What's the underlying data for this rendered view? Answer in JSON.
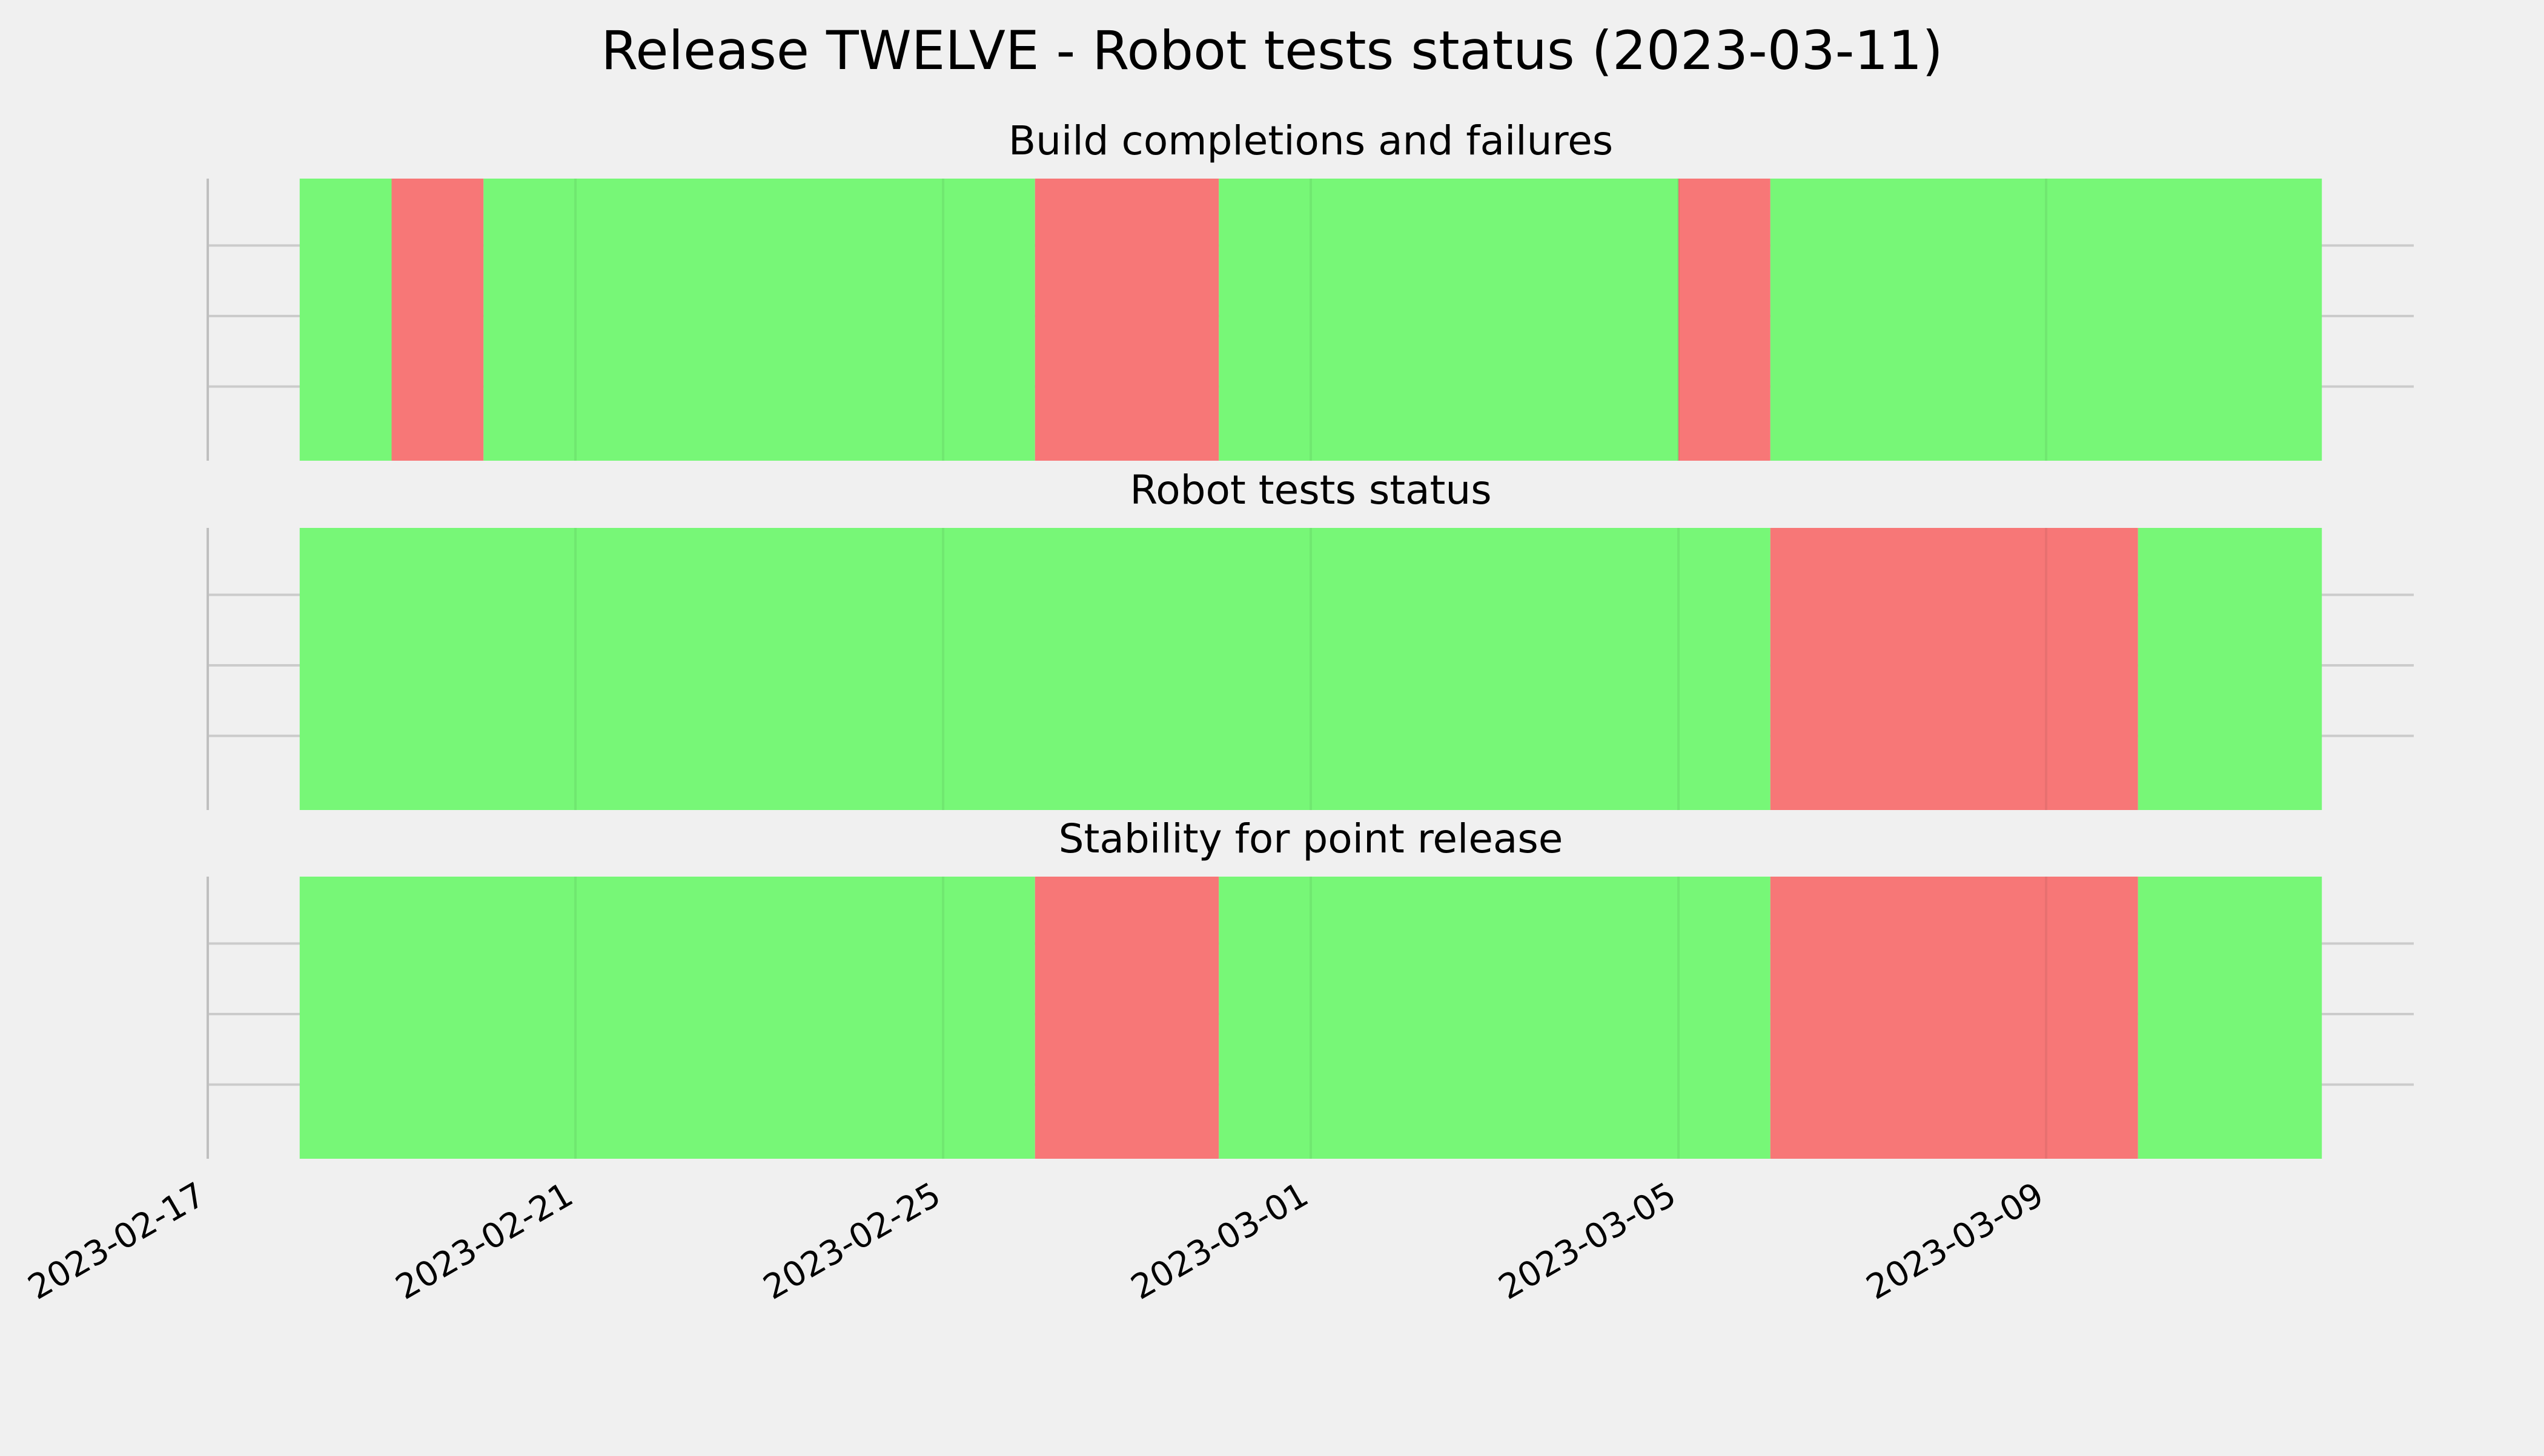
{
  "chart_data": {
    "type": "timeline",
    "title": "Release TWELVE - Robot tests status (2023-03-11)",
    "x_type": "date",
    "xlim": [
      "2023-02-17",
      "2023-03-13"
    ],
    "x_ticks": [
      "2023-02-17",
      "2023-02-21",
      "2023-02-25",
      "2023-03-01",
      "2023-03-05",
      "2023-03-09"
    ],
    "grid": true,
    "colors": {
      "pass": "#77f777",
      "fail": "#f77777",
      "background": "#f0f0f0",
      "grid": "#cbcbcb"
    },
    "panels": [
      {
        "title": "Build completions and failures",
        "segments": [
          {
            "start": "2023-02-18",
            "end": "2023-02-19",
            "status": "pass"
          },
          {
            "start": "2023-02-19",
            "end": "2023-02-20",
            "status": "fail"
          },
          {
            "start": "2023-02-20",
            "end": "2023-02-26",
            "status": "pass"
          },
          {
            "start": "2023-02-26",
            "end": "2023-02-28",
            "status": "fail"
          },
          {
            "start": "2023-02-28",
            "end": "2023-03-05",
            "status": "pass"
          },
          {
            "start": "2023-03-05",
            "end": "2023-03-06",
            "status": "fail"
          },
          {
            "start": "2023-03-06",
            "end": "2023-03-12",
            "status": "pass"
          }
        ]
      },
      {
        "title": "Robot tests status",
        "segments": [
          {
            "start": "2023-02-18",
            "end": "2023-03-06",
            "status": "pass"
          },
          {
            "start": "2023-03-06",
            "end": "2023-03-10",
            "status": "fail"
          },
          {
            "start": "2023-03-10",
            "end": "2023-03-12",
            "status": "pass"
          }
        ]
      },
      {
        "title": "Stability for point release",
        "segments": [
          {
            "start": "2023-02-18",
            "end": "2023-02-26",
            "status": "pass"
          },
          {
            "start": "2023-02-26",
            "end": "2023-02-28",
            "status": "fail"
          },
          {
            "start": "2023-02-28",
            "end": "2023-03-06",
            "status": "pass"
          },
          {
            "start": "2023-03-06",
            "end": "2023-03-10",
            "status": "fail"
          },
          {
            "start": "2023-03-10",
            "end": "2023-03-12",
            "status": "pass"
          }
        ]
      }
    ]
  }
}
